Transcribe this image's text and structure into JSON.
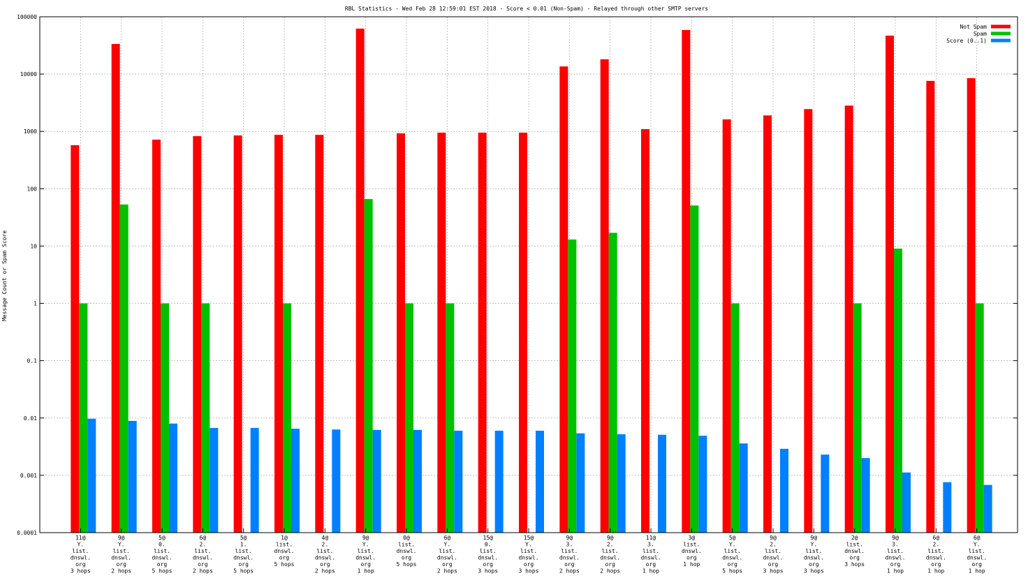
{
  "chart_data": {
    "type": "bar",
    "title": "RBL Statistics - Wed Feb 28 12:59:01 EST 2018 - Score < 0.01 (Non-Spam) - Relayed through other SMTP servers",
    "xlabel": "",
    "ylabel": "Message Count or Spam Score",
    "yscale": "log",
    "ylim": [
      0.0001,
      100000
    ],
    "yticks": [
      "0.0001",
      "0.001",
      "0.01",
      "0.1",
      "1",
      "10",
      "100",
      "1000",
      "10000",
      "100000"
    ],
    "grid": true,
    "legend_position": "top-right",
    "categories": [
      [
        "11@",
        "Y.",
        "list.",
        "dnswl.",
        "org",
        "3 hops"
      ],
      [
        "9@",
        "Y.",
        "list.",
        "dnswl.",
        "org",
        "2 hops"
      ],
      [
        "5@",
        "0.",
        "list.",
        "dnswl.",
        "org",
        "5 hops"
      ],
      [
        "6@",
        "2.",
        "list.",
        "dnswl.",
        "org",
        "2 hops"
      ],
      [
        "5@",
        "1.",
        "list.",
        "dnswl.",
        "org",
        "5 hops"
      ],
      [
        "1@",
        "list.",
        "dnswl.",
        "org",
        "5 hops"
      ],
      [
        "4@",
        "2.",
        "list.",
        "dnswl.",
        "org",
        "2 hops"
      ],
      [
        "9@",
        "Y.",
        "list.",
        "dnswl.",
        "org",
        "1 hop"
      ],
      [
        "0@",
        "list.",
        "dnswl.",
        "org",
        "5 hops"
      ],
      [
        "6@",
        "Y.",
        "list.",
        "dnswl.",
        "org",
        "2 hops"
      ],
      [
        "15@",
        "0.",
        "list.",
        "dnswl.",
        "org",
        "3 hops"
      ],
      [
        "15@",
        "Y.",
        "list.",
        "dnswl.",
        "org",
        "3 hops"
      ],
      [
        "9@",
        "3.",
        "list.",
        "dnswl.",
        "org",
        "2 hops"
      ],
      [
        "9@",
        "2.",
        "list.",
        "dnswl.",
        "org",
        "2 hops"
      ],
      [
        "11@",
        "3.",
        "list.",
        "dnswl.",
        "org",
        "1 hop"
      ],
      [
        "3@",
        "list.",
        "dnswl.",
        "org",
        "1 hop"
      ],
      [
        "5@",
        "Y.",
        "list.",
        "dnswl.",
        "org",
        "5 hops"
      ],
      [
        "9@",
        "2.",
        "list.",
        "dnswl.",
        "org",
        "3 hops"
      ],
      [
        "9@",
        "Y.",
        "list.",
        "dnswl.",
        "org",
        "3 hops"
      ],
      [
        "2@",
        "list.",
        "dnswl.",
        "org",
        "3 hops"
      ],
      [
        "9@",
        "3.",
        "list.",
        "dnswl.",
        "org",
        "1 hop"
      ],
      [
        "6@",
        "2.",
        "list.",
        "dnswl.",
        "org",
        "1 hop"
      ],
      [
        "6@",
        "Y.",
        "list.",
        "dnswl.",
        "org",
        "1 hop"
      ]
    ],
    "series": [
      {
        "name": "Not Spam",
        "color": "#ff0000",
        "values": [
          574,
          33500,
          718,
          826,
          850,
          870,
          870,
          62100,
          925,
          950,
          950,
          950,
          13600,
          18100,
          1095,
          58700,
          1620,
          1900,
          2450,
          2820,
          46800,
          7600,
          8500
        ]
      },
      {
        "name": "Spam",
        "color": "#00c000",
        "values": [
          1,
          53,
          1,
          1,
          null,
          1,
          null,
          66,
          1,
          1,
          null,
          null,
          13,
          17,
          null,
          51,
          1,
          null,
          null,
          1,
          9,
          null,
          1
        ]
      },
      {
        "name": "Score (0..1)",
        "color": "#0080ff",
        "values": [
          0.0097,
          0.0089,
          0.008,
          0.0067,
          0.0067,
          0.0065,
          0.0063,
          0.0062,
          0.0062,
          0.006,
          0.006,
          0.006,
          0.0054,
          0.0052,
          0.0051,
          0.0049,
          0.0036,
          0.0029,
          0.0023,
          0.002,
          0.00112,
          0.00076,
          0.00068
        ]
      }
    ]
  }
}
